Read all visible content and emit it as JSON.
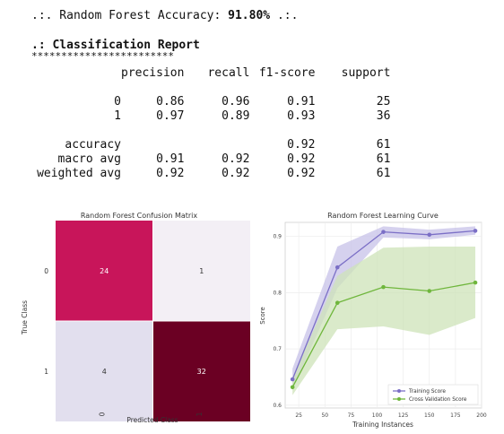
{
  "accuracy": {
    "prefix": ".:. Random Forest Accuracy: ",
    "value": "91.80%",
    "suffix": " .:."
  },
  "report": {
    "title": ".: Classification Report",
    "stars": "************************",
    "headers": [
      "precision",
      "recall",
      "f1-score",
      "support"
    ],
    "rows": [
      {
        "label": "0",
        "precision": "0.86",
        "recall": "0.96",
        "f1": "0.91",
        "support": "25"
      },
      {
        "label": "1",
        "precision": "0.97",
        "recall": "0.89",
        "f1": "0.93",
        "support": "36"
      }
    ],
    "summary": [
      {
        "label": "accuracy",
        "precision": "",
        "recall": "",
        "f1": "0.92",
        "support": "61"
      },
      {
        "label": "macro avg",
        "precision": "0.91",
        "recall": "0.92",
        "f1": "0.92",
        "support": "61"
      },
      {
        "label": "weighted avg",
        "precision": "0.92",
        "recall": "0.92",
        "f1": "0.92",
        "support": "61"
      }
    ]
  },
  "chart_data": [
    {
      "type": "heatmap",
      "title": "Random Forest Confusion Matrix",
      "xlabel": "Predicted Class",
      "ylabel": "True Class",
      "x_ticks": [
        "0",
        "1"
      ],
      "y_ticks": [
        "0",
        "1"
      ],
      "cells": [
        [
          24,
          1
        ],
        [
          4,
          32
        ]
      ],
      "colors": [
        [
          "#c8155a",
          "#f3eff5"
        ],
        [
          "#e2dfee",
          "#6b0023"
        ]
      ],
      "text_colors": [
        [
          "#ffffff",
          "#333333"
        ],
        [
          "#333333",
          "#ffffff"
        ]
      ]
    },
    {
      "type": "line",
      "title": "Random Forest Learning Curve",
      "xlabel": "Training Instances",
      "ylabel": "Score",
      "xlim": [
        12,
        200
      ],
      "ylim": [
        0.595,
        0.925
      ],
      "x_ticks": [
        25,
        50,
        75,
        100,
        125,
        150,
        175,
        200
      ],
      "y_ticks": [
        0.6,
        0.7,
        0.8,
        0.9
      ],
      "y_tick_labels": [
        "0.6",
        "0.7",
        "0.8",
        "0.9"
      ],
      "grid": true,
      "legend": "bottom-right",
      "x": [
        19,
        62,
        106,
        150,
        194
      ],
      "series": [
        {
          "name": "Training Score",
          "color": "#7b6fc6",
          "band_color": "#c7c2e8",
          "values": [
            0.646,
            0.845,
            0.908,
            0.903,
            0.91
          ],
          "lower": [
            0.628,
            0.808,
            0.898,
            0.895,
            0.903
          ],
          "upper": [
            0.665,
            0.882,
            0.918,
            0.912,
            0.918
          ]
        },
        {
          "name": "Cross Validation Score",
          "color": "#6fb63c",
          "band_color": "#cde3b8",
          "values": [
            0.632,
            0.782,
            0.81,
            0.803,
            0.818
          ],
          "lower": [
            0.618,
            0.735,
            0.74,
            0.725,
            0.755
          ],
          "upper": [
            0.648,
            0.83,
            0.88,
            0.882,
            0.882
          ]
        }
      ]
    }
  ]
}
